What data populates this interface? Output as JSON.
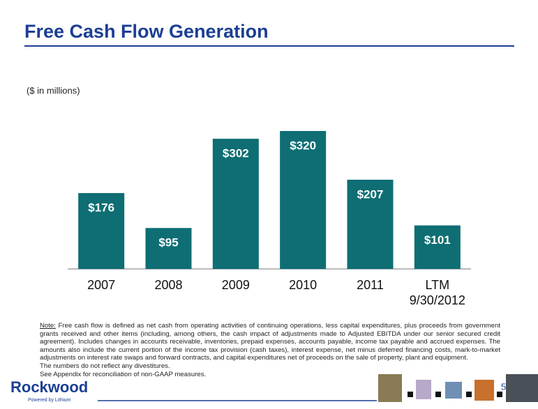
{
  "chart_data": {
    "type": "bar",
    "title": "Free Cash Flow Generation",
    "subtitle": "($ in millions)",
    "categories": [
      "2007",
      "2008",
      "2009",
      "2010",
      "2011",
      "LTM\n9/30/2012"
    ],
    "values": [
      176,
      95,
      302,
      320,
      207,
      101
    ],
    "value_labels": [
      "$176",
      "$95",
      "$302",
      "$320",
      "$207",
      "$101"
    ],
    "color": "#0e6e73"
  },
  "note": {
    "label": "Note:",
    "text": "Free cash flow is defined as net cash from operating activities of continuing operations, less capital expenditures, plus proceeds from government grants received and other items (including, among others, the cash impact of adjustments made to Adjusted EBITDA under our senior secured credit agreement). Includes changes in accounts receivable, inventories, prepaid expenses, accounts payable, income tax payable and accrued expenses. The amounts also include the current portion of the income tax provision (cash taxes), interest expense, net minus deferred financing costs, mark-to-market adjustments on interest rate swaps and forward contracts, and capital expenditures net of proceeds on the sale of property, plant and equipment.",
    "lines": [
      "The numbers do not reflect any divestitures.",
      "See Appendix for reconciliation of non-GAAP measures."
    ]
  },
  "footer": {
    "logo": "Rockwood",
    "tagline": "Powered by Lithium",
    "page_number": "5"
  }
}
